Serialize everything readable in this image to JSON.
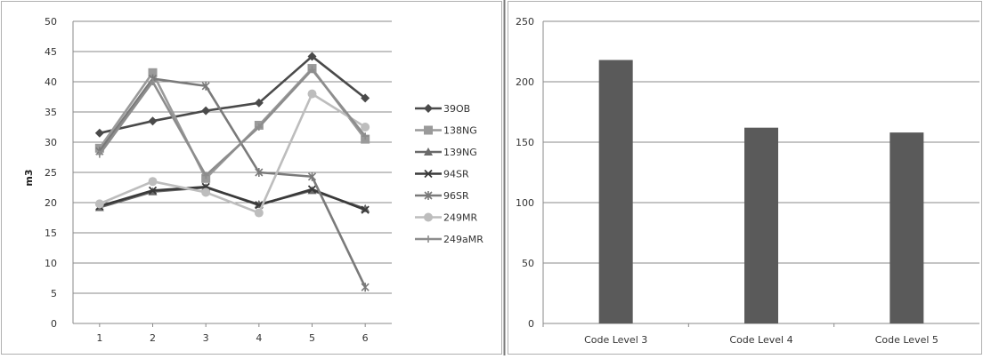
{
  "chart_data": [
    {
      "type": "line",
      "x": [
        1,
        2,
        3,
        4,
        5,
        6
      ],
      "ylabel": "m3",
      "ylim": [
        0,
        50
      ],
      "yticks": [
        0,
        5,
        10,
        15,
        20,
        25,
        30,
        35,
        40,
        45,
        50
      ],
      "grid": true,
      "legend": "right",
      "series": [
        {
          "name": "39OB",
          "values": [
            31.5,
            33.5,
            35.2,
            36.5,
            44.2,
            37.3
          ],
          "color": "#4a4a4a",
          "marker": "diamond"
        },
        {
          "name": "138NG",
          "values": [
            29.0,
            41.5,
            24.0,
            32.8,
            42.2,
            30.5
          ],
          "color": "#9a9a9a",
          "marker": "square"
        },
        {
          "name": "139NG",
          "values": [
            19.2,
            21.8,
            22.5,
            19.7,
            22.0,
            19.0
          ],
          "color": "#6a6a6a",
          "marker": "triangle"
        },
        {
          "name": "94SR",
          "values": [
            19.4,
            22.0,
            22.6,
            19.6,
            22.2,
            18.8
          ],
          "color": "#3a3a3a",
          "marker": "x"
        },
        {
          "name": "96SR",
          "values": [
            28.5,
            40.5,
            39.3,
            25.0,
            24.3,
            6.0
          ],
          "color": "#7a7a7a",
          "marker": "star"
        },
        {
          "name": "249MR",
          "values": [
            19.8,
            23.5,
            21.7,
            18.3,
            38.0,
            32.5
          ],
          "color": "#bdbdbd",
          "marker": "circle"
        },
        {
          "name": "249aMR",
          "values": [
            28.0,
            40.0,
            24.5,
            32.5,
            42.0,
            31.0
          ],
          "color": "#8d8d8d",
          "marker": "plus"
        }
      ]
    },
    {
      "type": "bar",
      "categories": [
        "Code Level 3",
        "Code Level 4",
        "Code Level 5"
      ],
      "values": [
        218,
        162,
        158
      ],
      "ylim": [
        0,
        250
      ],
      "yticks": [
        0,
        50,
        100,
        150,
        200,
        250
      ],
      "grid": true,
      "color": "#5a5a5a"
    }
  ]
}
